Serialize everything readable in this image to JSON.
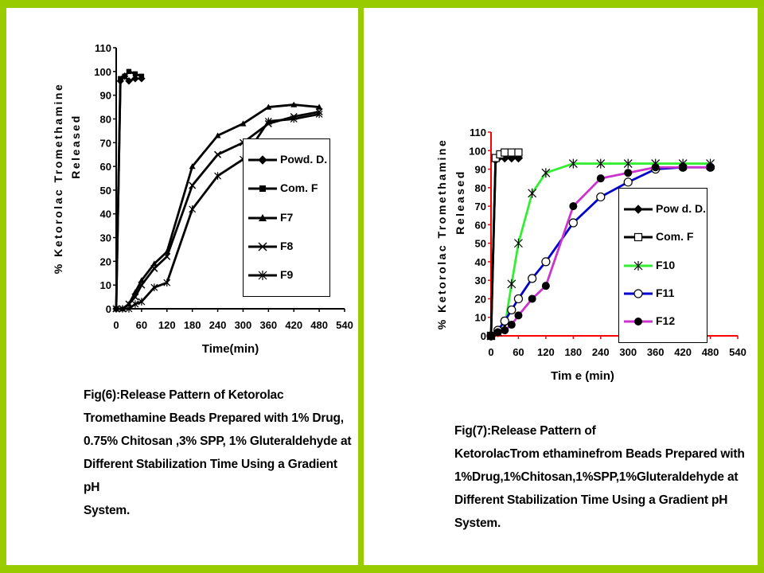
{
  "chart_data": [
    {
      "type": "line",
      "title": "",
      "xlabel": "Time(min)",
      "ylabel_line1": "% Ketorolac Tromethamine",
      "ylabel_line2": "Released",
      "xlim": [
        0,
        540
      ],
      "ylim": [
        0,
        110
      ],
      "xticks": [
        0,
        60,
        120,
        180,
        240,
        300,
        360,
        420,
        480,
        540
      ],
      "yticks": [
        0,
        10,
        20,
        30,
        40,
        50,
        60,
        70,
        80,
        90,
        100,
        110
      ],
      "legend_placement": "right-middle",
      "series": [
        {
          "name": "Powd. D.",
          "color": "#000000",
          "marker": "diamond",
          "x": [
            0,
            10,
            20,
            30,
            45,
            60
          ],
          "y": [
            0,
            96,
            98,
            96,
            97,
            97
          ]
        },
        {
          "name": "Com. F",
          "color": "#000000",
          "marker": "square",
          "x": [
            0,
            10,
            20,
            30,
            45,
            60
          ],
          "y": [
            0,
            97,
            98,
            100,
            99,
            98
          ]
        },
        {
          "name": "F7",
          "color": "#000000",
          "marker": "triangle",
          "x": [
            0,
            15,
            30,
            45,
            60,
            90,
            120,
            180,
            240,
            300,
            360,
            420,
            480
          ],
          "y": [
            0,
            0,
            2,
            7,
            12,
            19,
            24,
            60,
            73,
            78,
            85,
            86,
            85
          ]
        },
        {
          "name": "F8",
          "color": "#000000",
          "marker": "x",
          "x": [
            0,
            15,
            30,
            45,
            60,
            90,
            120,
            180,
            240,
            300,
            360,
            420,
            480
          ],
          "y": [
            0,
            0,
            2,
            5,
            10,
            17,
            22,
            52,
            65,
            70,
            78,
            81,
            83
          ]
        },
        {
          "name": "F9",
          "color": "#000000",
          "marker": "star",
          "x": [
            0,
            15,
            30,
            45,
            60,
            90,
            120,
            180,
            240,
            300,
            360,
            420,
            480
          ],
          "y": [
            0,
            0,
            0,
            2,
            3,
            9,
            11,
            42,
            56,
            63,
            79,
            80,
            82
          ]
        }
      ]
    },
    {
      "type": "line",
      "title": "",
      "xlabel": "Tim e (min)",
      "ylabel_line1": "% Ketorolac Tromethamine",
      "ylabel_line2": "Released",
      "xlim": [
        0,
        540
      ],
      "ylim": [
        0,
        110
      ],
      "xticks": [
        0,
        60,
        120,
        180,
        240,
        300,
        360,
        420,
        480,
        540
      ],
      "yticks": [
        0,
        10,
        20,
        30,
        40,
        50,
        60,
        70,
        80,
        90,
        100,
        110
      ],
      "legend_placement": "right-middle",
      "series": [
        {
          "name": "Pow d. D.",
          "color": "#000000",
          "marker": "diamond",
          "x": [
            0,
            10,
            20,
            30,
            45,
            60
          ],
          "y": [
            0,
            95,
            97,
            96,
            96,
            96
          ]
        },
        {
          "name": "Com. F",
          "color": "#000000",
          "marker": "square-open",
          "x": [
            0,
            10,
            20,
            30,
            45,
            60
          ],
          "y": [
            0,
            96,
            98,
            99,
            99,
            99
          ]
        },
        {
          "name": "F10",
          "color": "#33ee33",
          "marker": "star",
          "x": [
            0,
            15,
            30,
            45,
            60,
            90,
            120,
            180,
            240,
            300,
            360,
            420,
            480
          ],
          "y": [
            0,
            2,
            5,
            28,
            50,
            77,
            88,
            93,
            93,
            93,
            93,
            93,
            93
          ]
        },
        {
          "name": "F11",
          "color": "#0000cc",
          "marker": "circle-open",
          "x": [
            0,
            15,
            30,
            45,
            60,
            90,
            120,
            180,
            240,
            300,
            360,
            420,
            480
          ],
          "y": [
            0,
            3,
            8,
            14,
            20,
            31,
            40,
            61,
            75,
            83,
            90,
            91,
            91
          ]
        },
        {
          "name": "F12",
          "color": "#cc33cc",
          "marker": "circle-filled",
          "x": [
            0,
            15,
            30,
            45,
            60,
            90,
            120,
            180,
            240,
            300,
            360,
            420,
            480
          ],
          "y": [
            0,
            2,
            3,
            6,
            11,
            20,
            27,
            70,
            85,
            88,
            91,
            91,
            91
          ]
        }
      ]
    }
  ],
  "captions": {
    "left": "Fig(6):Release Pattern of Ketorolac\nTromethamine Beads Prepared with 1% Drug,\n0.75% Chitosan ,3% SPP, 1% Gluteraldehyde at\nDifferent Stabilization Time Using a Gradient pH\nSystem.",
    "right": " Fig(7):Release Pattern of\nKetorolacTrom ethaminefrom Beads Prepared with\n1%Drug,1%Chitosan,1%SPP,1%Gluteraldehyde at\nDifferent Stabilization Time Using a Gradient pH\nSystem."
  },
  "colors": {
    "background": "#99cc00",
    "panel": "#ffffff",
    "axis_left": "#000000",
    "axis_right": "#ff0000"
  }
}
